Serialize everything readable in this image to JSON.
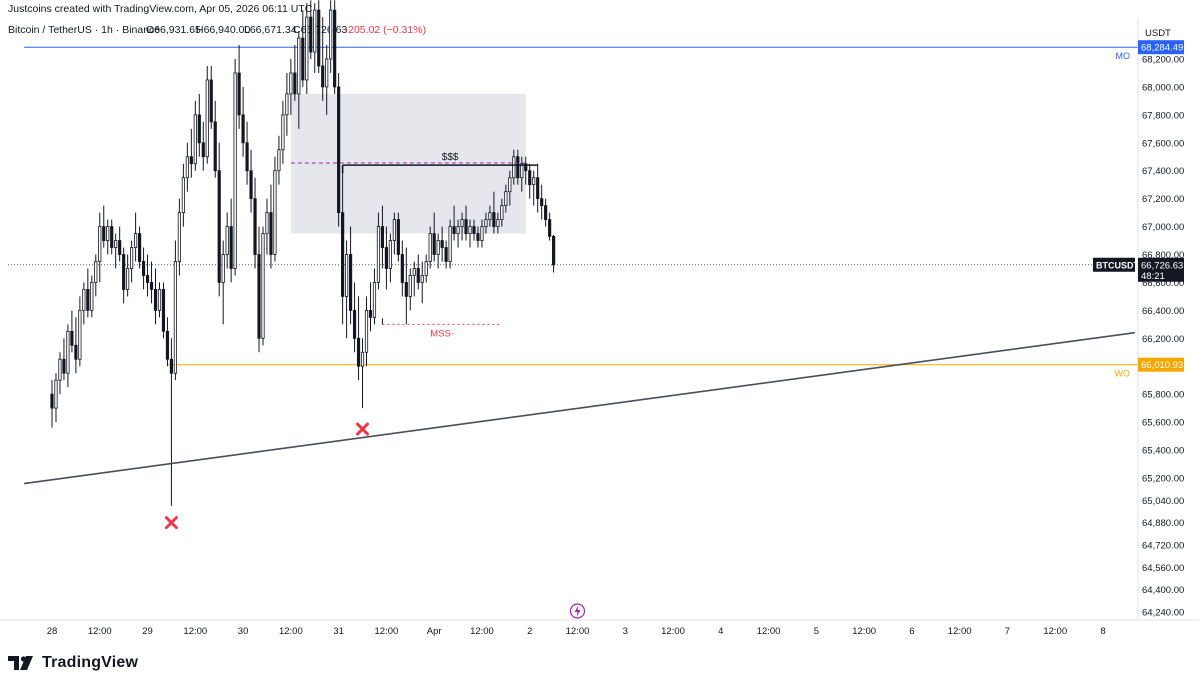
{
  "header": {
    "credit": "Justcoins created with TradingView.com, Apr 05, 2026 06:11 UTC",
    "symbol_line": "Bitcoin / TetherUS · 1h · Binance",
    "open": "O66,931.65",
    "high": "H66,940.00",
    "low": "L66,671.34",
    "close": "C66,726.63",
    "change": "−205.02 (−0.31%)"
  },
  "brand": {
    "name": "TradingView"
  },
  "colors": {
    "up": "#131722",
    "down": "#131722",
    "mo_line": "#2962ff",
    "wo_line": "#f7a600",
    "mss": "#f23645",
    "sss": "#9c27b0",
    "zone": "#d1d4dc",
    "trend": "#4a4e5a",
    "cross": "#f23645"
  },
  "chart_data": {
    "type": "candlestick",
    "title": "Bitcoin / TetherUS · 1h · Binance",
    "currency": "USDT",
    "ylim": [
      64120,
      68620
    ],
    "y_ticks": [
      "68,200.00",
      "68,000.00",
      "67,800.00",
      "67,600.00",
      "67,400.00",
      "67,200.00",
      "67,000.00",
      "66,800.00",
      "66,600.00",
      "66,400.00",
      "66,200.00",
      "66,000.00",
      "65,800.00",
      "65,600.00",
      "65,400.00",
      "65,200.00",
      "65,040.00",
      "64,880.00",
      "64,720.00",
      "64,560.00",
      "64,400.00",
      "64,240.00"
    ],
    "x_ticks": [
      "28",
      "12:00",
      "29",
      "12:00",
      "30",
      "12:00",
      "31",
      "12:00",
      "Apr",
      "12:00",
      "2",
      "12:00",
      "3",
      "12:00",
      "4",
      "12:00",
      "5",
      "12:00",
      "6",
      "12:00",
      "7",
      "12:00",
      "8"
    ],
    "x_range_hours": [
      0,
      271
    ],
    "x_tick_hours": [
      0,
      12,
      24,
      36,
      48,
      60,
      72,
      84,
      96,
      108,
      120,
      132,
      144,
      156,
      168,
      180,
      192,
      204,
      216,
      228,
      240,
      252,
      264
    ],
    "last_price": {
      "label": "BTCUSDT",
      "value": "66,726.63",
      "countdown": "48:21",
      "price": 66726.63
    },
    "levels": [
      {
        "name": "MO",
        "value": 68284.49,
        "label": "68,284.49",
        "start_hour": -7
      },
      {
        "name": "WO",
        "value": 66010.93,
        "label": "66,010.93",
        "start_hour": 29
      }
    ],
    "annotations": {
      "sss": {
        "text": "$$$",
        "value": 67440,
        "from_hour": 73,
        "to_hour": 122
      },
      "sss_dashed": {
        "value": 67455,
        "from_hour": 60,
        "to_hour": 119
      },
      "mss": {
        "text": "MSS-",
        "value": 66300,
        "from_hour": 83,
        "to_hour": 113
      },
      "zone": {
        "from_hour": 60,
        "to_hour": 119,
        "top": 67950,
        "bottom": 66950
      },
      "trendline": {
        "from": [
          -7,
          65160
        ],
        "to": [
          272,
          66240
        ]
      },
      "crosses": [
        {
          "hour": 30,
          "value": 64880
        },
        {
          "hour": 78,
          "value": 65550
        }
      ]
    },
    "candles": [
      [
        0,
        65800,
        65900,
        65560,
        65700
      ],
      [
        1,
        65700,
        65950,
        65600,
        65900
      ],
      [
        2,
        65900,
        66100,
        65800,
        66050
      ],
      [
        3,
        66050,
        66200,
        65900,
        65950
      ],
      [
        4,
        65950,
        66300,
        65850,
        66250
      ],
      [
        5,
        66250,
        66400,
        66100,
        66150
      ],
      [
        6,
        66150,
        66350,
        65950,
        66050
      ],
      [
        7,
        66050,
        66500,
        66000,
        66400
      ],
      [
        8,
        66400,
        66600,
        66300,
        66550
      ],
      [
        9,
        66550,
        66700,
        66350,
        66400
      ],
      [
        10,
        66400,
        66650,
        66350,
        66600
      ],
      [
        11,
        66600,
        66800,
        66500,
        66750
      ],
      [
        12,
        66750,
        67100,
        66600,
        67000
      ],
      [
        13,
        67000,
        67150,
        66850,
        66900
      ],
      [
        14,
        66900,
        67050,
        66800,
        67000
      ],
      [
        15,
        67000,
        67050,
        66800,
        66850
      ],
      [
        16,
        66850,
        66950,
        66700,
        66900
      ],
      [
        17,
        66900,
        67000,
        66750,
        66800
      ],
      [
        18,
        66800,
        66850,
        66450,
        66550
      ],
      [
        19,
        66550,
        66800,
        66500,
        66700
      ],
      [
        20,
        66700,
        66900,
        66600,
        66850
      ],
      [
        21,
        66850,
        67100,
        66750,
        66950
      ],
      [
        22,
        66950,
        67000,
        66700,
        66750
      ],
      [
        23,
        66750,
        66850,
        66550,
        66650
      ],
      [
        24,
        66650,
        66800,
        66500,
        66600
      ],
      [
        25,
        66600,
        66750,
        66450,
        66550
      ],
      [
        26,
        66550,
        66700,
        66300,
        66400
      ],
      [
        27,
        66400,
        66600,
        66350,
        66550
      ],
      [
        28,
        66550,
        66600,
        66200,
        66250
      ],
      [
        29,
        66250,
        66350,
        66000,
        66050
      ],
      [
        30,
        66050,
        66200,
        65000,
        65950
      ],
      [
        31,
        65950,
        66900,
        65900,
        66750
      ],
      [
        32,
        66750,
        67200,
        66650,
        67100
      ],
      [
        33,
        67100,
        67450,
        67000,
        67350
      ],
      [
        34,
        67350,
        67600,
        67250,
        67500
      ],
      [
        35,
        67500,
        67700,
        67350,
        67450
      ],
      [
        36,
        67450,
        67900,
        67400,
        67800
      ],
      [
        37,
        67800,
        67950,
        67500,
        67600
      ],
      [
        38,
        67600,
        67750,
        67400,
        67500
      ],
      [
        39,
        67500,
        68150,
        67450,
        68050
      ],
      [
        40,
        68050,
        68150,
        67700,
        67750
      ],
      [
        41,
        67750,
        67900,
        67350,
        67400
      ],
      [
        42,
        67400,
        67600,
        66500,
        66600
      ],
      [
        43,
        66600,
        66900,
        66300,
        66800
      ],
      [
        44,
        66800,
        67100,
        66700,
        67000
      ],
      [
        45,
        67000,
        67200,
        66600,
        66700
      ],
      [
        46,
        66700,
        68200,
        66650,
        68100
      ],
      [
        47,
        68100,
        68300,
        67700,
        67800
      ],
      [
        48,
        67800,
        68000,
        67500,
        67600
      ],
      [
        49,
        67600,
        67750,
        67300,
        67400
      ],
      [
        50,
        67400,
        67550,
        67100,
        67200
      ],
      [
        51,
        67200,
        67350,
        66700,
        66800
      ],
      [
        52,
        66800,
        67000,
        66100,
        66200
      ],
      [
        53,
        66200,
        67000,
        66150,
        66950
      ],
      [
        54,
        66950,
        67200,
        66800,
        67100
      ],
      [
        55,
        67100,
        67300,
        66700,
        66800
      ],
      [
        56,
        66800,
        67500,
        66750,
        67400
      ],
      [
        57,
        67400,
        67650,
        67300,
        67550
      ],
      [
        58,
        67550,
        67900,
        67450,
        67800
      ],
      [
        59,
        67800,
        68100,
        67650,
        67950
      ],
      [
        60,
        67950,
        68200,
        67800,
        68100
      ],
      [
        61,
        68100,
        68300,
        67900,
        67950
      ],
      [
        62,
        67950,
        68400,
        67700,
        68350
      ],
      [
        63,
        68350,
        68550,
        68000,
        68050
      ],
      [
        64,
        68050,
        68600,
        67950,
        68500
      ],
      [
        65,
        68500,
        68620,
        68200,
        68250
      ],
      [
        66,
        68250,
        68600,
        68100,
        68550
      ],
      [
        67,
        68550,
        68620,
        68100,
        68150
      ],
      [
        68,
        68150,
        68500,
        67900,
        68000
      ],
      [
        69,
        68000,
        68300,
        67800,
        68200
      ],
      [
        70,
        68200,
        68620,
        68100,
        68550
      ],
      [
        71,
        68550,
        68620,
        67950,
        68000
      ],
      [
        72,
        68000,
        68100,
        67000,
        67100
      ],
      [
        73,
        67100,
        67400,
        66300,
        66500
      ],
      [
        74,
        66500,
        66900,
        66200,
        66800
      ],
      [
        75,
        66800,
        67000,
        66300,
        66400
      ],
      [
        76,
        66400,
        66600,
        66100,
        66200
      ],
      [
        77,
        66200,
        66500,
        65900,
        66000
      ],
      [
        78,
        66000,
        66200,
        65700,
        66100
      ],
      [
        79,
        66100,
        66500,
        66000,
        66400
      ],
      [
        80,
        66400,
        66600,
        66250,
        66350
      ],
      [
        81,
        66350,
        66700,
        66300,
        66600
      ],
      [
        82,
        66600,
        67100,
        66550,
        67000
      ],
      [
        83,
        67000,
        67150,
        66700,
        66850
      ],
      [
        84,
        66850,
        67000,
        66550,
        66700
      ],
      [
        85,
        66700,
        66950,
        66600,
        66900
      ],
      [
        86,
        66900,
        67100,
        66800,
        67050
      ],
      [
        87,
        67050,
        67100,
        66750,
        66800
      ],
      [
        88,
        66800,
        66900,
        66500,
        66600
      ],
      [
        89,
        66600,
        66850,
        66300,
        66500
      ],
      [
        90,
        66500,
        66700,
        66400,
        66650
      ],
      [
        91,
        66650,
        66750,
        66500,
        66700
      ],
      [
        92,
        66700,
        66800,
        66550,
        66600
      ],
      [
        93,
        66600,
        66750,
        66450,
        66650
      ],
      [
        94,
        66650,
        66800,
        66600,
        66750
      ],
      [
        95,
        66750,
        67000,
        66700,
        66950
      ],
      [
        96,
        66950,
        67100,
        66750,
        66800
      ],
      [
        97,
        66800,
        66950,
        66700,
        66900
      ],
      [
        98,
        66900,
        67000,
        66750,
        66850
      ],
      [
        99,
        66850,
        66900,
        66700,
        66750
      ],
      [
        100,
        66750,
        67050,
        66700,
        67000
      ],
      [
        101,
        67000,
        67150,
        66900,
        66950
      ],
      [
        102,
        66950,
        67050,
        66850,
        67000
      ],
      [
        103,
        67000,
        67100,
        66900,
        67050
      ],
      [
        104,
        67050,
        67150,
        66900,
        66950
      ],
      [
        105,
        66950,
        67050,
        66850,
        67000
      ],
      [
        106,
        67000,
        67050,
        66900,
        66950
      ],
      [
        107,
        66950,
        67000,
        66850,
        66900
      ],
      [
        108,
        66900,
        67050,
        66850,
        67000
      ],
      [
        109,
        67000,
        67100,
        66950,
        67050
      ],
      [
        110,
        67050,
        67150,
        67000,
        67100
      ],
      [
        111,
        67100,
        67250,
        66950,
        67000
      ],
      [
        112,
        67000,
        67100,
        66950,
        67050
      ],
      [
        113,
        67050,
        67200,
        67000,
        67150
      ],
      [
        114,
        67150,
        67300,
        67100,
        67250
      ],
      [
        115,
        67250,
        67400,
        67150,
        67350
      ],
      [
        116,
        67350,
        67550,
        67300,
        67500
      ],
      [
        117,
        67500,
        67550,
        67300,
        67350
      ],
      [
        118,
        67350,
        67500,
        67250,
        67450
      ],
      [
        119,
        67450,
        67500,
        67300,
        67400
      ],
      [
        120,
        67400,
        67450,
        67200,
        67300
      ],
      [
        121,
        67300,
        67400,
        67150,
        67350
      ],
      [
        122,
        67350,
        67450,
        67100,
        67200
      ],
      [
        123,
        67200,
        67300,
        67050,
        67150
      ],
      [
        124,
        67150,
        67200,
        67000,
        67050
      ],
      [
        125,
        67050,
        67100,
        66900,
        66930
      ],
      [
        126,
        66930,
        66940,
        66671,
        66726
      ]
    ]
  }
}
